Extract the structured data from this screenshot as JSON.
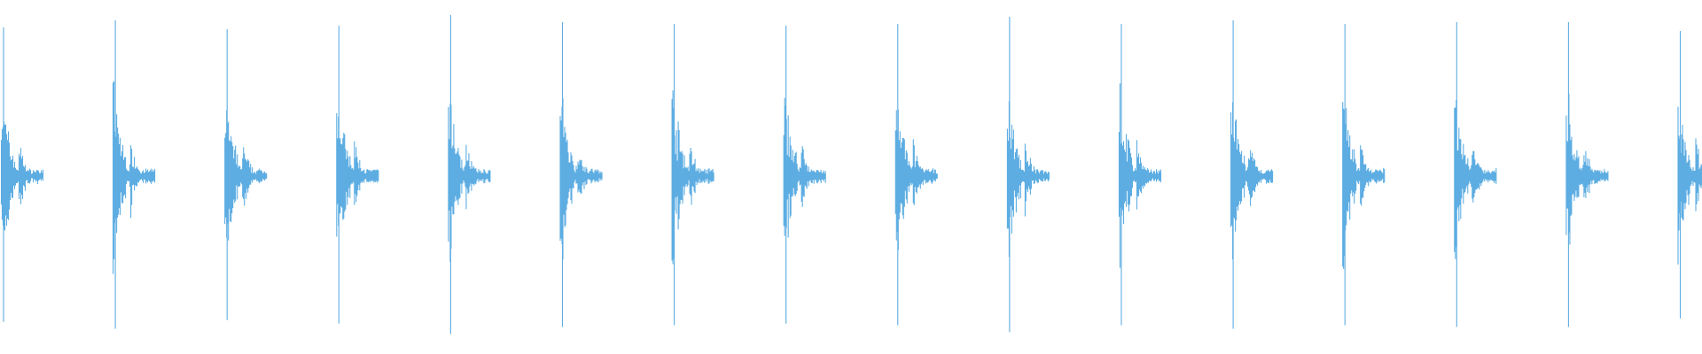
{
  "chart_data": {
    "type": "waveform",
    "title": "",
    "xlabel": "",
    "ylabel": "",
    "ylim": [
      -1,
      1
    ],
    "grid": false,
    "axes_visible": false,
    "legend": "none",
    "color": "#5dade2",
    "background": "#ffffff",
    "burst_count": 16,
    "burst_peak_amplitudes": [
      0.84,
      0.88,
      0.83,
      0.85,
      0.91,
      0.87,
      0.86,
      0.85,
      0.86,
      0.9,
      0.86,
      0.88,
      0.86,
      0.87,
      0.87,
      0.82
    ]
  }
}
